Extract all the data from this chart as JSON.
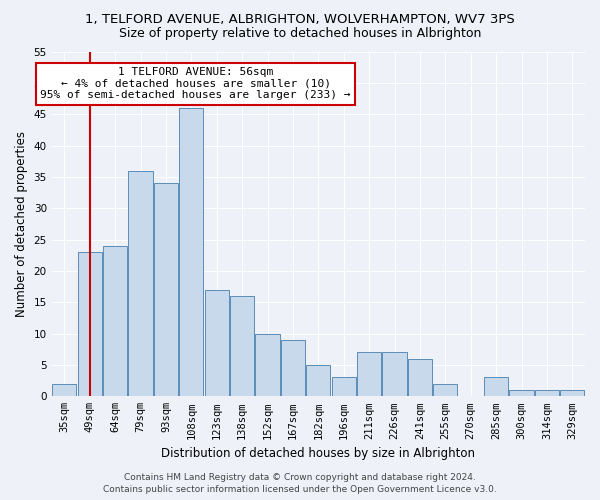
{
  "title": "1, TELFORD AVENUE, ALBRIGHTON, WOLVERHAMPTON, WV7 3PS",
  "subtitle": "Size of property relative to detached houses in Albrighton",
  "xlabel": "Distribution of detached houses by size in Albrighton",
  "ylabel": "Number of detached properties",
  "categories": [
    "35sqm",
    "49sqm",
    "64sqm",
    "79sqm",
    "93sqm",
    "108sqm",
    "123sqm",
    "138sqm",
    "152sqm",
    "167sqm",
    "182sqm",
    "196sqm",
    "211sqm",
    "226sqm",
    "241sqm",
    "255sqm",
    "270sqm",
    "285sqm",
    "300sqm",
    "314sqm",
    "329sqm"
  ],
  "values": [
    2,
    23,
    24,
    36,
    34,
    46,
    17,
    16,
    10,
    9,
    5,
    3,
    7,
    7,
    6,
    2,
    0,
    3,
    1,
    1,
    1
  ],
  "bar_color": "#c9d9ec",
  "bar_edge_color": "#5b8db8",
  "vline_color": "#cc0000",
  "annotation_line1": "1 TELFORD AVENUE: 56sqm",
  "annotation_line2": "← 4% of detached houses are smaller (10)",
  "annotation_line3": "95% of semi-detached houses are larger (233) →",
  "annotation_box_color": "#ffffff",
  "annotation_box_edge": "#cc0000",
  "ylim": [
    0,
    55
  ],
  "yticks": [
    0,
    5,
    10,
    15,
    20,
    25,
    30,
    35,
    40,
    45,
    50,
    55
  ],
  "footer1": "Contains HM Land Registry data © Crown copyright and database right 2024.",
  "footer2": "Contains public sector information licensed under the Open Government Licence v3.0.",
  "bg_color": "#eef2f8",
  "grid_color": "#ffffff",
  "title_fontsize": 9.5,
  "subtitle_fontsize": 9,
  "tick_fontsize": 7.5,
  "ylabel_fontsize": 8.5,
  "xlabel_fontsize": 8.5,
  "footer_fontsize": 6.5,
  "annot_fontsize": 8
}
